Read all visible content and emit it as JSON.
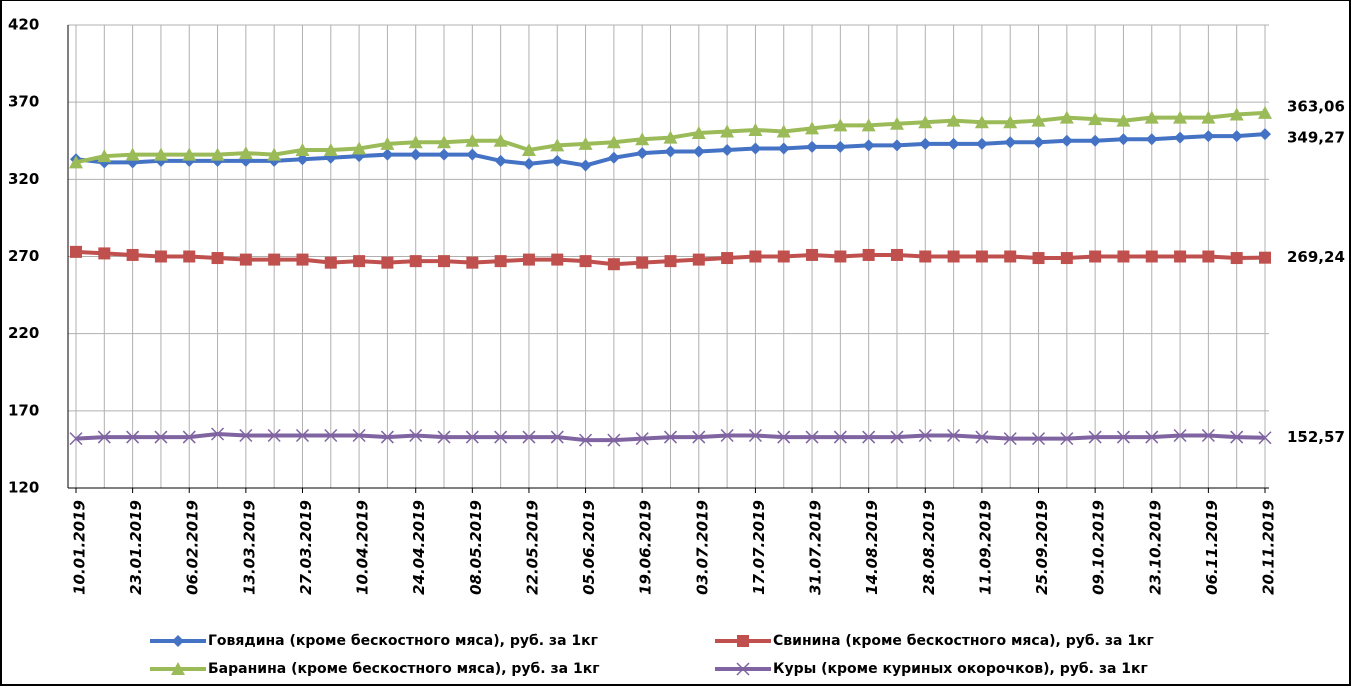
{
  "chart_data": {
    "type": "line",
    "categories": [
      "10.01.2019",
      null,
      "23.01.2019",
      null,
      "06.02.2019",
      null,
      "13.03.2019",
      null,
      "27.03.2019",
      null,
      "10.04.2019",
      null,
      "24.04.2019",
      null,
      "08.05.2019",
      null,
      "22.05.2019",
      null,
      "05.06.2019",
      null,
      "19.06.2019",
      null,
      "03.07.2019",
      null,
      "17.07.2019",
      null,
      "31.07.2019",
      null,
      "14.08.2019",
      null,
      "28.08.2019",
      null,
      "11.09.2019",
      null,
      "25.09.2019",
      null,
      "09.10.2019",
      null,
      "23.10.2019",
      null,
      "06.11.2019",
      null,
      "20.11.2019"
    ],
    "ylim": [
      120,
      420
    ],
    "yticks": [
      120,
      170,
      220,
      270,
      320,
      370,
      420
    ],
    "grid": true,
    "series": [
      {
        "name": "Говядина (кроме бескостного мяса), руб. за 1кг",
        "color": "#4472c4",
        "marker": "diamond",
        "values": [
          333,
          331,
          331,
          332,
          332,
          332,
          332,
          332,
          333,
          334,
          335,
          336,
          336,
          336,
          336,
          332,
          330,
          332,
          329,
          334,
          337,
          338,
          338,
          339,
          340,
          340,
          341,
          341,
          342,
          342,
          343,
          343,
          343,
          344,
          344,
          345,
          345,
          346,
          346,
          347,
          348,
          348,
          349.27
        ],
        "value_labels": [
          null,
          null,
          null,
          null,
          null,
          null,
          null,
          null,
          null,
          null,
          null,
          null,
          null,
          null,
          null,
          null,
          null,
          null,
          null,
          null,
          null,
          null,
          null,
          null,
          null,
          null,
          null,
          null,
          null,
          null,
          null,
          null,
          null,
          null,
          null,
          null,
          null,
          null,
          null,
          null,
          null,
          null,
          "349,27"
        ]
      },
      {
        "name": "Свинина (кроме бескостного мяса), руб. за 1кг",
        "color": "#c0504d",
        "marker": "square",
        "values": [
          273,
          272,
          271,
          270,
          270,
          269,
          268,
          268,
          268,
          266,
          267,
          266,
          267,
          267,
          266,
          267,
          268,
          268,
          267,
          265,
          266,
          267,
          268,
          269,
          270,
          270,
          271,
          270,
          271,
          271,
          270,
          270,
          270,
          270,
          269,
          269,
          270,
          270,
          270,
          270,
          270,
          269,
          269.24
        ],
        "value_labels": [
          null,
          null,
          null,
          null,
          null,
          null,
          null,
          null,
          null,
          null,
          null,
          null,
          null,
          null,
          null,
          null,
          null,
          null,
          null,
          null,
          null,
          null,
          null,
          null,
          null,
          null,
          null,
          null,
          null,
          null,
          null,
          null,
          null,
          null,
          null,
          null,
          null,
          null,
          null,
          null,
          null,
          null,
          "269,24"
        ]
      },
      {
        "name": "Баранина (кроме бескостного мяса), руб. за 1кг",
        "color": "#9bbb59",
        "marker": "triangle",
        "values": [
          331,
          335,
          336,
          336,
          336,
          336,
          337,
          336,
          339,
          339,
          340,
          343,
          344,
          344,
          345,
          345,
          339,
          342,
          343,
          344,
          346,
          347,
          350,
          351,
          352,
          351,
          353,
          355,
          355,
          356,
          357,
          358,
          357,
          357,
          358,
          360,
          359,
          358,
          360,
          360,
          360,
          362,
          363.06
        ],
        "value_labels": [
          null,
          null,
          null,
          null,
          null,
          null,
          null,
          null,
          null,
          null,
          null,
          null,
          null,
          null,
          null,
          null,
          null,
          null,
          null,
          null,
          null,
          null,
          null,
          null,
          null,
          null,
          null,
          null,
          null,
          null,
          null,
          null,
          null,
          null,
          null,
          null,
          null,
          null,
          null,
          null,
          null,
          null,
          "363,06"
        ]
      },
      {
        "name": "Куры (кроме куриных окорочков), руб. за 1кг",
        "color": "#8064a2",
        "marker": "x",
        "values": [
          152,
          153,
          153,
          153,
          153,
          155,
          154,
          154,
          154,
          154,
          154,
          153,
          154,
          153,
          153,
          153,
          153,
          153,
          151,
          151,
          152,
          153,
          153,
          154,
          154,
          153,
          153,
          153,
          153,
          153,
          154,
          154,
          153,
          152,
          152,
          152,
          153,
          153,
          153,
          154,
          154,
          153,
          152.57
        ],
        "value_labels": [
          null,
          null,
          null,
          null,
          null,
          null,
          null,
          null,
          null,
          null,
          null,
          null,
          null,
          null,
          null,
          null,
          null,
          null,
          null,
          null,
          null,
          null,
          null,
          null,
          null,
          null,
          null,
          null,
          null,
          null,
          null,
          null,
          null,
          null,
          null,
          null,
          null,
          null,
          null,
          null,
          null,
          null,
          "152,57"
        ]
      }
    ]
  }
}
